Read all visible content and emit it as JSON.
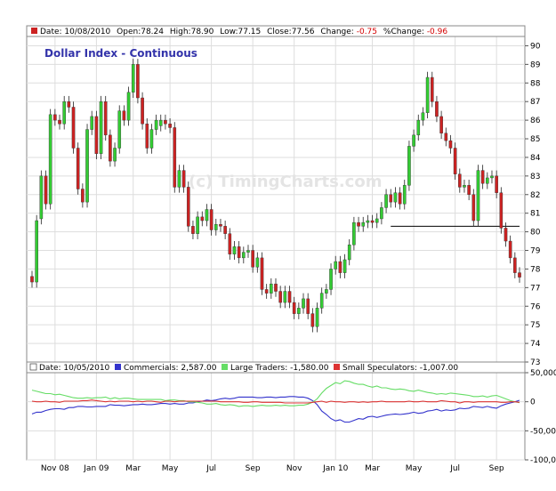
{
  "colors": {
    "up": "#33cc33",
    "down": "#cc2222",
    "commercials": "#3333cc",
    "large_traders": "#66dd66",
    "small_speculators": "#dd3333",
    "grid": "#dddddd",
    "title": "#3333aa"
  },
  "price_header": {
    "date": "Date: 10/08/2010",
    "open": "Open:78.24",
    "high": "High:78.90",
    "low": "Low:77.15",
    "close": "Close:77.56",
    "change_label": "Change:",
    "change_value": "-0.75",
    "pct_label": "%Change:",
    "pct_value": "-0.96"
  },
  "cot_header": {
    "date": "Date: 10/05/2010",
    "commercials": "Commercials: 2,587.00",
    "large": "Large Traders: -1,580.00",
    "small": "Small Speculators: -1,007.00"
  },
  "watermark": "(c) TimingCharts.com",
  "chart_data": [
    {
      "type": "candlestick",
      "title": "Dollar Index - Continuous",
      "ylim": [
        73,
        90.5
      ],
      "y_ticks": [
        "73",
        "74",
        "75",
        "76",
        "77",
        "78",
        "79",
        "80",
        "81",
        "82",
        "83",
        "84",
        "85",
        "86",
        "87",
        "88",
        "89",
        "90"
      ],
      "x_tick_labels": [
        "Nov 08",
        "Jan 09",
        "Mar",
        "May",
        "Jul",
        "Sep",
        "Nov",
        "Jan 10",
        "Mar",
        "May",
        "Jul",
        "Sep"
      ],
      "x_tick_weeks": [
        5,
        14,
        22,
        30,
        39,
        48,
        57,
        66,
        74,
        83,
        92,
        101
      ],
      "weeks_total": 107,
      "trendline": {
        "from_week": 78,
        "to_week": 106,
        "value": 80.3
      },
      "closes": [
        77.3,
        80.6,
        83.0,
        81.5,
        86.3,
        86.0,
        85.8,
        87.0,
        86.7,
        84.5,
        82.3,
        81.6,
        85.5,
        86.2,
        84.2,
        87.0,
        85.2,
        83.8,
        84.5,
        86.5,
        86.0,
        87.5,
        89.0,
        87.2,
        85.8,
        84.5,
        85.5,
        86.0,
        86.0,
        85.8,
        85.6,
        82.4,
        83.3,
        82.4,
        80.3,
        79.9,
        80.8,
        80.6,
        81.2,
        80.1,
        80.4,
        80.3,
        79.9,
        78.8,
        79.2,
        78.6,
        78.9,
        79.0,
        78.1,
        78.6,
        76.9,
        76.7,
        77.2,
        76.8,
        76.2,
        76.8,
        76.2,
        75.6,
        75.9,
        76.4,
        75.6,
        74.9,
        75.9,
        76.7,
        76.9,
        78.0,
        78.4,
        77.8,
        78.5,
        79.3,
        80.5,
        80.3,
        80.5,
        80.6,
        80.5,
        80.7,
        81.3,
        82.0,
        81.6,
        82.1,
        81.5,
        82.5,
        84.6,
        85.2,
        86.0,
        86.4,
        88.3,
        87.0,
        86.2,
        85.3,
        84.9,
        84.5,
        83.1,
        82.4,
        82.5,
        82.0,
        80.6,
        83.3,
        82.6,
        82.9,
        83.0,
        82.1,
        80.2,
        79.5,
        78.6,
        77.8,
        77.56
      ],
      "changes": [
        -0.3,
        3.3,
        2.3,
        -1.5,
        4.8,
        -0.3,
        -0.2,
        1.2,
        -0.3,
        -2.2,
        -2.2,
        -0.7,
        3.9,
        0.7,
        -2.0,
        2.8,
        -1.8,
        -1.4,
        0.7,
        2.0,
        -0.5,
        1.5,
        1.5,
        -1.8,
        -1.4,
        -1.3,
        1.0,
        0.5,
        0.3,
        -0.2,
        -0.2,
        -3.2,
        0.9,
        -0.9,
        -2.1,
        -0.4,
        0.9,
        -0.2,
        0.6,
        -1.1,
        0.3,
        -0.1,
        -0.4,
        -1.1,
        0.4,
        -0.6,
        0.3,
        0.1,
        -0.9,
        0.5,
        -1.7,
        -0.2,
        0.5,
        -0.4,
        -0.6,
        0.6,
        -0.6,
        -0.6,
        0.3,
        0.5,
        -0.8,
        -0.7,
        1.0,
        0.8,
        0.2,
        1.1,
        0.4,
        -0.6,
        0.7,
        0.8,
        1.2,
        -0.2,
        0.2,
        0.1,
        -0.1,
        0.2,
        0.6,
        0.7,
        -0.4,
        0.5,
        -0.6,
        1.0,
        2.1,
        0.6,
        0.8,
        0.4,
        1.9,
        -1.3,
        -0.8,
        -0.9,
        -0.4,
        -0.4,
        -1.4,
        -0.7,
        0.1,
        -0.5,
        -1.4,
        2.7,
        -0.7,
        0.3,
        0.1,
        -0.9,
        -1.9,
        -0.7,
        -0.9,
        -0.8,
        -0.24
      ],
      "wick_high": 0.3,
      "wick_low": 0.3
    },
    {
      "type": "line",
      "ylim": [
        -100000,
        50000
      ],
      "y_ticks": [
        "50,000",
        "0",
        "-50,000",
        "-100,000"
      ],
      "series": [
        {
          "name": "Commercials",
          "values": [
            -21000,
            -18000,
            -18000,
            -15000,
            -13000,
            -12000,
            -12000,
            -13000,
            -10000,
            -10000,
            -8000,
            -8000,
            -9000,
            -9000,
            -8000,
            -8000,
            -8000,
            -5000,
            -6000,
            -6000,
            -7000,
            -6000,
            -5000,
            -5000,
            -4000,
            -5000,
            -5000,
            -4000,
            -3000,
            -3000,
            -4000,
            -3000,
            -4000,
            -4000,
            -2000,
            -2000,
            0,
            1000,
            3000,
            2000,
            3000,
            5000,
            6000,
            5000,
            6000,
            8000,
            8000,
            8000,
            8000,
            7000,
            7000,
            8000,
            8000,
            7000,
            8000,
            8000,
            9000,
            9000,
            8000,
            8000,
            6000,
            2000,
            -5000,
            -16000,
            -22000,
            -29000,
            -33000,
            -31000,
            -35000,
            -35000,
            -32000,
            -29000,
            -30000,
            -26000,
            -25000,
            -27000,
            -25000,
            -23000,
            -22000,
            -21000,
            -22000,
            -21000,
            -20000,
            -18000,
            -20000,
            -19000,
            -16000,
            -15000,
            -13000,
            -16000,
            -14000,
            -15000,
            -14000,
            -11000,
            -12000,
            -11000,
            -8000,
            -9000,
            -10000,
            -8000,
            -10000,
            -11000,
            -7000,
            -4000,
            -2000,
            0,
            2587
          ]
        },
        {
          "name": "Large Traders",
          "values": [
            20000,
            18000,
            16000,
            14000,
            14000,
            12000,
            13000,
            11000,
            9000,
            7000,
            6000,
            6000,
            7000,
            6000,
            7000,
            7000,
            8000,
            5000,
            7000,
            5000,
            6000,
            6000,
            5000,
            4000,
            4000,
            4000,
            4000,
            4000,
            4000,
            2000,
            3000,
            3000,
            2000,
            2000,
            0,
            0,
            -1000,
            -2000,
            -4000,
            -4000,
            -3000,
            -5000,
            -6000,
            -5000,
            -6000,
            -8000,
            -7000,
            -7000,
            -8000,
            -7000,
            -6000,
            -7000,
            -7000,
            -6000,
            -7000,
            -6000,
            -7000,
            -7000,
            -6000,
            -6000,
            -4000,
            -1000,
            5000,
            15000,
            23000,
            28000,
            33000,
            31000,
            36000,
            35000,
            32000,
            30000,
            30000,
            27000,
            25000,
            27000,
            24000,
            24000,
            22000,
            21000,
            22000,
            21000,
            19000,
            18000,
            20000,
            18000,
            16000,
            15000,
            13000,
            14000,
            13000,
            15000,
            14000,
            13000,
            12000,
            11000,
            9000,
            9000,
            10000,
            8000,
            10000,
            11000,
            8000,
            5000,
            2000,
            0,
            -1580
          ]
        },
        {
          "name": "Small Speculators",
          "values": [
            1000,
            0,
            0,
            1000,
            0,
            0,
            -1000,
            1000,
            1000,
            1000,
            1000,
            2000,
            2000,
            3000,
            2000,
            1000,
            0,
            1000,
            0,
            1000,
            1000,
            1000,
            0,
            1000,
            0,
            1000,
            1000,
            0,
            -1000,
            1000,
            1000,
            0,
            1000,
            1000,
            1000,
            1000,
            1000,
            1000,
            1000,
            1000,
            1000,
            0,
            0,
            0,
            0,
            0,
            -1000,
            -1000,
            0,
            0,
            -1000,
            -1000,
            -1000,
            -1000,
            -1000,
            -2000,
            -2000,
            -2000,
            -2000,
            -2000,
            -2000,
            -1000,
            0,
            1000,
            -1000,
            1000,
            0,
            0,
            -1000,
            0,
            0,
            -1000,
            0,
            -1000,
            0,
            0,
            1000,
            0,
            0,
            0,
            0,
            0,
            1000,
            0,
            0,
            1000,
            0,
            0,
            0,
            2000,
            1000,
            0,
            0,
            -2000,
            0,
            0,
            -1000,
            0,
            0,
            0,
            0,
            0,
            -1000,
            -1000,
            0,
            0,
            -1007
          ]
        }
      ]
    }
  ]
}
